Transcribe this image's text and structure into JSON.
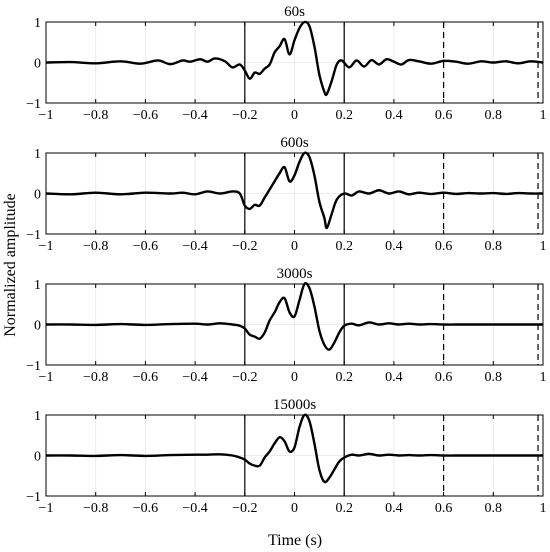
{
  "figure": {
    "ylabel": "Normalized amplitude",
    "xlabel": "Time (s)"
  },
  "chart_data": {
    "type": "line",
    "xlim": [
      -1,
      1
    ],
    "ylim": [
      -1,
      1
    ],
    "xticks": [
      -1,
      -0.8,
      -0.6,
      -0.4,
      -0.2,
      0,
      0.2,
      0.4,
      0.6,
      0.8,
      1
    ],
    "xtick_labels": [
      "−1",
      "−0.8",
      "−0.6",
      "−0.4",
      "−0.2",
      "0",
      "0.2",
      "0.4",
      "0.6",
      "0.8",
      "1"
    ],
    "yticks": [
      -1,
      0,
      1
    ],
    "ytick_labels": [
      "−1",
      "0",
      "1"
    ],
    "grid": true,
    "solid_markers_x": [
      -0.2,
      0.2
    ],
    "dashed_markers_x": [
      0.6,
      0.98
    ],
    "panels": [
      {
        "title": "60s",
        "x": [
          -1,
          -0.9,
          -0.8,
          -0.7,
          -0.62,
          -0.55,
          -0.5,
          -0.45,
          -0.42,
          -0.38,
          -0.35,
          -0.32,
          -0.28,
          -0.25,
          -0.22,
          -0.2,
          -0.18,
          -0.16,
          -0.14,
          -0.12,
          -0.1,
          -0.08,
          -0.06,
          -0.04,
          -0.02,
          0,
          0.02,
          0.04,
          0.06,
          0.08,
          0.1,
          0.12,
          0.13,
          0.15,
          0.17,
          0.19,
          0.22,
          0.25,
          0.28,
          0.31,
          0.34,
          0.37,
          0.4,
          0.43,
          0.46,
          0.5,
          0.55,
          0.6,
          0.65,
          0.7,
          0.75,
          0.8,
          0.85,
          0.9,
          0.95,
          1
        ],
        "y": [
          0,
          0.01,
          -0.02,
          0.03,
          -0.03,
          0.05,
          -0.04,
          0.05,
          0.02,
          0.08,
          0.02,
          0.1,
          0.03,
          -0.12,
          -0.05,
          -0.2,
          -0.4,
          -0.25,
          -0.28,
          -0.15,
          -0.05,
          0.25,
          0.4,
          0.58,
          0.2,
          0.55,
          0.85,
          1.0,
          0.9,
          0.4,
          -0.3,
          -0.72,
          -0.78,
          -0.45,
          -0.05,
          0.05,
          -0.12,
          0.05,
          -0.1,
          0.06,
          -0.05,
          0.08,
          0.02,
          -0.05,
          0.06,
          0.03,
          -0.03,
          0.04,
          0.02,
          -0.03,
          0.03,
          0.0,
          0.03,
          -0.02,
          0.03,
          0.0
        ]
      },
      {
        "title": "600s",
        "x": [
          -1,
          -0.9,
          -0.8,
          -0.7,
          -0.6,
          -0.5,
          -0.45,
          -0.4,
          -0.35,
          -0.3,
          -0.25,
          -0.22,
          -0.2,
          -0.18,
          -0.16,
          -0.14,
          -0.12,
          -0.1,
          -0.08,
          -0.06,
          -0.04,
          -0.02,
          0,
          0.02,
          0.04,
          0.06,
          0.08,
          0.1,
          0.12,
          0.13,
          0.15,
          0.17,
          0.2,
          0.23,
          0.26,
          0.3,
          0.34,
          0.38,
          0.42,
          0.46,
          0.5,
          0.55,
          0.6,
          0.65,
          0.7,
          0.75,
          0.8,
          0.85,
          0.9,
          0.95,
          1
        ],
        "y": [
          0,
          -0.02,
          0.02,
          -0.02,
          0.02,
          0.0,
          0.02,
          -0.02,
          0.05,
          0.0,
          0.05,
          0.0,
          -0.3,
          -0.38,
          -0.28,
          -0.3,
          -0.1,
          0.1,
          0.3,
          0.5,
          0.65,
          0.3,
          0.45,
          0.78,
          1.0,
          0.9,
          0.45,
          -0.2,
          -0.6,
          -0.85,
          -0.5,
          -0.15,
          0.0,
          -0.05,
          0.05,
          0.0,
          0.08,
          0.0,
          0.05,
          -0.02,
          0.02,
          -0.01,
          0.02,
          -0.01,
          0.01,
          0.0,
          0.01,
          -0.01,
          0.01,
          0.0,
          0.0
        ]
      },
      {
        "title": "3000s",
        "x": [
          -1,
          -0.9,
          -0.8,
          -0.7,
          -0.6,
          -0.5,
          -0.4,
          -0.35,
          -0.3,
          -0.25,
          -0.22,
          -0.2,
          -0.18,
          -0.16,
          -0.14,
          -0.12,
          -0.1,
          -0.08,
          -0.06,
          -0.04,
          -0.02,
          0,
          0.02,
          0.04,
          0.06,
          0.08,
          0.1,
          0.12,
          0.14,
          0.16,
          0.18,
          0.2,
          0.23,
          0.26,
          0.3,
          0.34,
          0.38,
          0.42,
          0.46,
          0.5,
          0.55,
          0.6,
          0.65,
          0.7,
          0.75,
          0.8,
          0.85,
          0.9,
          0.95,
          1
        ],
        "y": [
          0,
          0.0,
          -0.01,
          0.01,
          -0.01,
          0.01,
          0.02,
          0.0,
          0.03,
          0.0,
          -0.03,
          -0.1,
          -0.25,
          -0.3,
          -0.35,
          -0.2,
          0.1,
          0.3,
          0.55,
          0.65,
          0.3,
          0.2,
          0.6,
          1.0,
          0.9,
          0.45,
          -0.15,
          -0.5,
          -0.62,
          -0.45,
          -0.2,
          -0.03,
          0.02,
          -0.02,
          0.05,
          0.0,
          0.03,
          0.0,
          0.02,
          0.0,
          0.01,
          0.0,
          0.0,
          0.0,
          0.0,
          0.0,
          0.0,
          0.0,
          0.0,
          0.0
        ]
      },
      {
        "title": "15000s",
        "x": [
          -1,
          -0.9,
          -0.8,
          -0.7,
          -0.6,
          -0.5,
          -0.4,
          -0.35,
          -0.3,
          -0.25,
          -0.22,
          -0.2,
          -0.18,
          -0.16,
          -0.14,
          -0.12,
          -0.1,
          -0.08,
          -0.06,
          -0.04,
          -0.02,
          0,
          0.02,
          0.04,
          0.06,
          0.08,
          0.1,
          0.12,
          0.14,
          0.16,
          0.18,
          0.2,
          0.23,
          0.26,
          0.3,
          0.34,
          0.38,
          0.42,
          0.46,
          0.5,
          0.55,
          0.6,
          0.65,
          0.7,
          0.75,
          0.8,
          0.85,
          0.9,
          0.95,
          1
        ],
        "y": [
          0,
          0.0,
          -0.01,
          0.01,
          -0.01,
          0.01,
          0.02,
          0.02,
          0.03,
          0.0,
          -0.05,
          -0.1,
          -0.2,
          -0.25,
          -0.25,
          -0.05,
          0.1,
          0.3,
          0.45,
          0.35,
          0.1,
          0.2,
          0.7,
          1.0,
          0.85,
          0.3,
          -0.35,
          -0.65,
          -0.55,
          -0.35,
          -0.15,
          -0.05,
          0.02,
          0.0,
          0.04,
          0.0,
          0.02,
          0.0,
          0.01,
          0.0,
          0.01,
          0.0,
          0.0,
          0.0,
          0.0,
          0.0,
          0.0,
          0.0,
          0.0,
          0.0
        ]
      }
    ]
  }
}
